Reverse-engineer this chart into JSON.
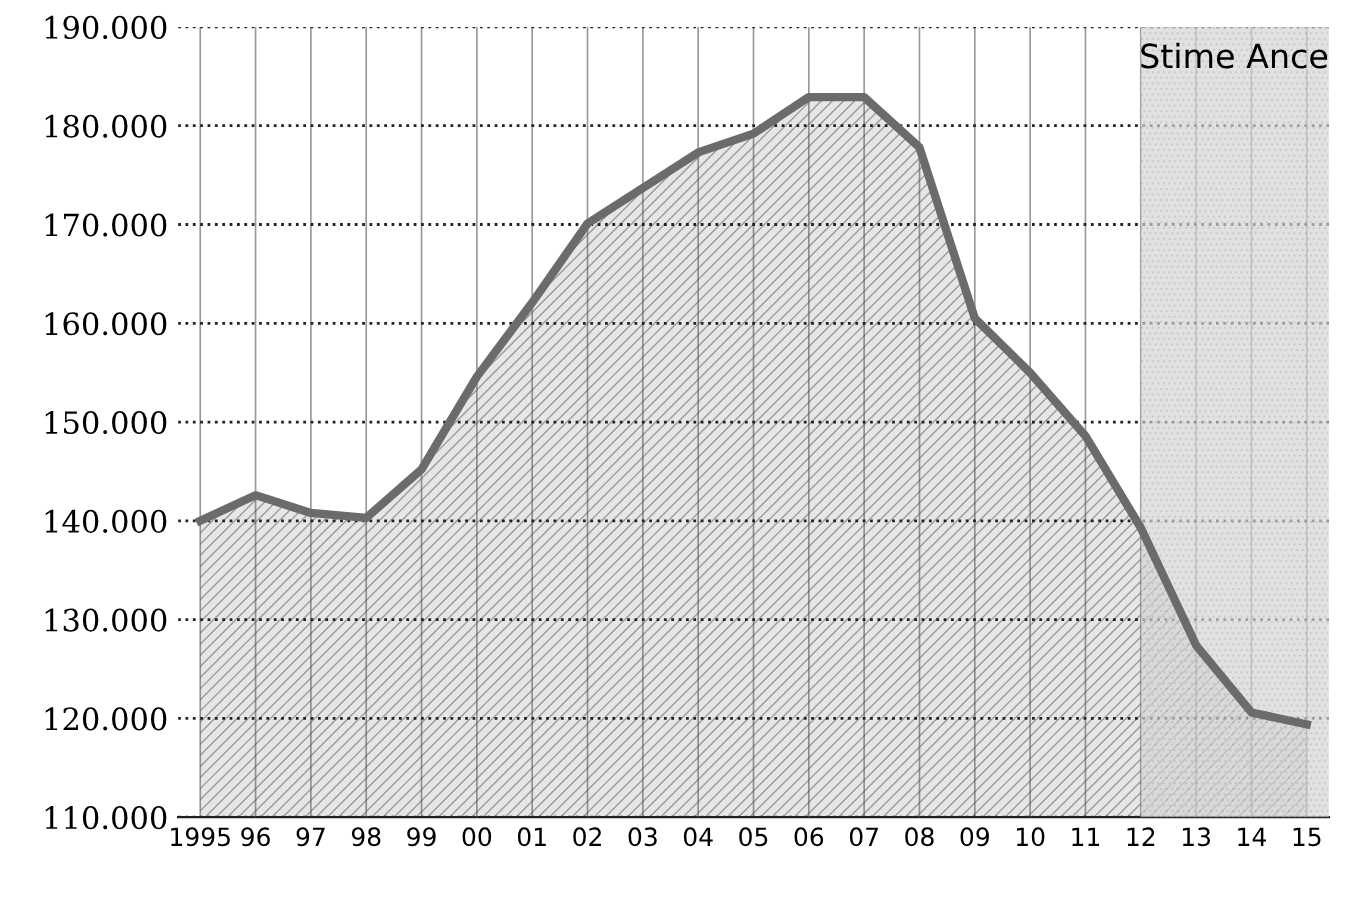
{
  "chart_data": {
    "type": "area",
    "x": [
      1995,
      1996,
      1997,
      1998,
      1999,
      2000,
      2001,
      2002,
      2003,
      2004,
      2005,
      2006,
      2007,
      2008,
      2009,
      2010,
      2011,
      2012,
      2013,
      2014,
      2015
    ],
    "series": [
      {
        "color": "#6b6b6b",
        "values": [
          140000,
          142600,
          140800,
          140300,
          145200,
          154600,
          162100,
          170100,
          173700,
          177300,
          179200,
          182900,
          182900,
          177800,
          160500,
          155000,
          148600,
          139300,
          127400,
          120600,
          119400
        ]
      }
    ],
    "xlim": [
      1994.6,
      2015.4
    ],
    "xticks": [
      {
        "value": 1995,
        "label": "1995"
      },
      {
        "value": 1996,
        "label": "96"
      },
      {
        "value": 1997,
        "label": "97"
      },
      {
        "value": 1998,
        "label": "98"
      },
      {
        "value": 1999,
        "label": "99"
      },
      {
        "value": 2000,
        "label": "00"
      },
      {
        "value": 2001,
        "label": "01"
      },
      {
        "value": 2002,
        "label": "02"
      },
      {
        "value": 2003,
        "label": "03"
      },
      {
        "value": 2004,
        "label": "04"
      },
      {
        "value": 2005,
        "label": "05"
      },
      {
        "value": 2006,
        "label": "06"
      },
      {
        "value": 2007,
        "label": "07"
      },
      {
        "value": 2008,
        "label": "08"
      },
      {
        "value": 2009,
        "label": "09"
      },
      {
        "value": 2010,
        "label": "10"
      },
      {
        "value": 2011,
        "label": "11"
      },
      {
        "value": 2012,
        "label": "12"
      },
      {
        "value": 2013,
        "label": "13"
      },
      {
        "value": 2014,
        "label": "14"
      },
      {
        "value": 2015,
        "label": "15"
      }
    ],
    "ylim": [
      110000,
      190000
    ],
    "yticks": [
      {
        "value": 110000,
        "label": "110.000"
      },
      {
        "value": 120000,
        "label": "120.000"
      },
      {
        "value": 130000,
        "label": "130.000"
      },
      {
        "value": 140000,
        "label": "140.000"
      },
      {
        "value": 150000,
        "label": "150.000"
      },
      {
        "value": 160000,
        "label": "160.000"
      },
      {
        "value": 170000,
        "label": "170.000"
      },
      {
        "value": 180000,
        "label": "180.000"
      },
      {
        "value": 190000,
        "label": "190.000"
      }
    ],
    "bands": [
      {
        "axis": "x",
        "from": 2012,
        "to": 2015.4,
        "label": "Stime Ance",
        "color": "#d4d4d4"
      }
    ],
    "grid": true
  }
}
